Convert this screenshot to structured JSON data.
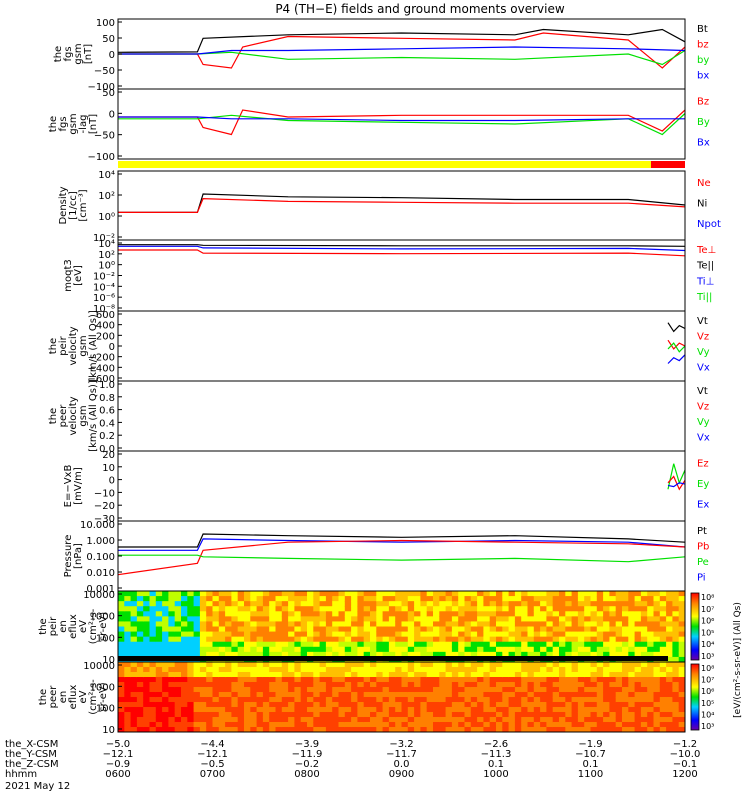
{
  "title": "P4 (TH−E) fields and ground moments overview",
  "colors": {
    "black": "#000000",
    "red": "#ff0000",
    "green": "#00e000",
    "blue": "#0000ff",
    "yellow": "#ffff00",
    "bar_red": "#ff0000"
  },
  "chart_data": [
    {
      "type": "line",
      "ylabel_lines": [
        "the",
        "fgs",
        "gsm",
        "[nT]"
      ],
      "ticks": [
        "100",
        "50",
        "0",
        "−50",
        "−100"
      ],
      "ylim": [
        -100,
        100
      ],
      "legend": [
        {
          "name": "Bt",
          "color": "black"
        },
        {
          "name": "bz",
          "color": "red"
        },
        {
          "name": "by",
          "color": "green"
        },
        {
          "name": "bx",
          "color": "blue"
        }
      ],
      "series": [
        {
          "name": "Bt",
          "color": "black",
          "x": [
            0,
            0.14,
            0.15,
            0.3,
            0.5,
            0.7,
            0.75,
            0.9,
            0.96,
            1
          ],
          "y": [
            5,
            6,
            45,
            55,
            60,
            55,
            70,
            55,
            70,
            35
          ]
        },
        {
          "name": "bz",
          "color": "red",
          "x": [
            0,
            0.14,
            0.15,
            0.2,
            0.22,
            0.3,
            0.5,
            0.7,
            0.75,
            0.9,
            0.96,
            1
          ],
          "y": [
            0,
            0,
            -30,
            -40,
            20,
            50,
            45,
            40,
            60,
            40,
            -40,
            20
          ]
        },
        {
          "name": "by",
          "color": "green",
          "x": [
            0,
            0.14,
            0.2,
            0.3,
            0.5,
            0.7,
            0.9,
            0.96,
            1
          ],
          "y": [
            0,
            0,
            5,
            -15,
            -10,
            -15,
            0,
            -30,
            10
          ]
        },
        {
          "name": "bx",
          "color": "blue",
          "x": [
            0,
            0.14,
            0.2,
            0.3,
            0.5,
            0.7,
            0.9,
            1
          ],
          "y": [
            0,
            0,
            10,
            10,
            15,
            20,
            15,
            10
          ]
        }
      ]
    },
    {
      "type": "line",
      "ylabel_lines": [
        "the",
        "fgs",
        "gsm",
        "-lag",
        "[nT]"
      ],
      "ticks": [
        "50",
        "0",
        "−50",
        "−100"
      ],
      "ylim": [
        -120,
        80
      ],
      "legend": [
        {
          "name": "Bz",
          "color": "red"
        },
        {
          "name": "By",
          "color": "green"
        },
        {
          "name": "Bx",
          "color": "blue"
        }
      ],
      "series": [
        {
          "name": "Bz",
          "color": "red",
          "x": [
            0,
            0.14,
            0.15,
            0.2,
            0.22,
            0.3,
            0.5,
            0.7,
            0.9,
            0.96,
            1
          ],
          "y": [
            0,
            0,
            -30,
            -50,
            20,
            0,
            5,
            5,
            5,
            -40,
            20
          ]
        },
        {
          "name": "By",
          "color": "green",
          "x": [
            0,
            0.14,
            0.2,
            0.3,
            0.5,
            0.7,
            0.9,
            0.96,
            1
          ],
          "y": [
            -5,
            -5,
            5,
            -10,
            -15,
            -20,
            -5,
            -50,
            10
          ]
        },
        {
          "name": "Bx",
          "color": "blue",
          "x": [
            0,
            0.14,
            0.2,
            0.3,
            0.5,
            0.7,
            0.9,
            1
          ],
          "y": [
            0,
            0,
            -5,
            -5,
            -10,
            -10,
            -5,
            -5
          ]
        }
      ]
    },
    {
      "type": "line",
      "ylabel_lines": [
        "Density",
        "[1/cc]",
        "[cm⁻³]"
      ],
      "ticks": [
        "10⁴",
        "10²",
        "10⁰",
        "10⁻²"
      ],
      "ylim": [
        -3,
        4.5
      ],
      "scale": "log",
      "legend": [
        {
          "name": "Ne",
          "color": "red"
        },
        {
          "name": "Ni",
          "color": "black"
        },
        {
          "name": "Npot",
          "color": "blue"
        }
      ],
      "series": [
        {
          "name": "Ni",
          "color": "black",
          "x": [
            0,
            0.14,
            0.15,
            0.3,
            0.5,
            0.7,
            0.9,
            1
          ],
          "y": [
            0,
            0,
            2,
            1.7,
            1.6,
            1.4,
            1.4,
            0.8
          ]
        },
        {
          "name": "Ne",
          "color": "red",
          "x": [
            0,
            0.14,
            0.15,
            0.3,
            0.5,
            0.7,
            0.9,
            1
          ],
          "y": [
            0,
            0,
            1.5,
            1.2,
            1.1,
            1.0,
            1.0,
            0.6
          ]
        }
      ]
    },
    {
      "type": "line",
      "ylabel_lines": [
        "moqt3",
        "[eV]"
      ],
      "ticks": [
        "10⁴",
        "10²",
        "10⁰",
        "10⁻²",
        "10⁻⁴",
        "10⁻⁶",
        "10⁻⁸"
      ],
      "ylim": [
        -9,
        4.5
      ],
      "scale": "log",
      "legend": [
        {
          "name": "Te⊥",
          "color": "red"
        },
        {
          "name": "Te||",
          "color": "black"
        },
        {
          "name": "Ti⊥",
          "color": "blue"
        },
        {
          "name": "Ti||",
          "color": "green"
        }
      ],
      "series": [
        {
          "name": "Te||",
          "color": "black",
          "x": [
            0,
            0.14,
            0.15,
            0.5,
            0.9,
            1
          ],
          "y": [
            3.6,
            3.6,
            3.5,
            3.4,
            3.4,
            3.3
          ]
        },
        {
          "name": "Ti⊥",
          "color": "blue",
          "x": [
            0,
            0.14,
            0.15,
            0.5,
            0.9,
            1
          ],
          "y": [
            3.3,
            3.3,
            3.0,
            2.8,
            2.9,
            2.5
          ]
        },
        {
          "name": "Te⊥",
          "color": "red",
          "x": [
            0,
            0.14,
            0.15,
            0.5,
            0.9,
            1
          ],
          "y": [
            2.6,
            2.6,
            2.0,
            1.9,
            2.0,
            1.5
          ]
        }
      ]
    },
    {
      "type": "line",
      "ylabel_lines": [
        "the",
        "peir",
        "velocity",
        "gsm",
        "[km/s (All Qs)]"
      ],
      "ticks": [
        "600",
        "400",
        "200",
        "0",
        "−200",
        "−400",
        "−600"
      ],
      "ylim": [
        -600,
        600
      ],
      "legend": [
        {
          "name": "Vt",
          "color": "black"
        },
        {
          "name": "Vz",
          "color": "red"
        },
        {
          "name": "Vy",
          "color": "green"
        },
        {
          "name": "Vx",
          "color": "blue"
        }
      ],
      "series": [
        {
          "name": "Vt",
          "color": "black",
          "x": [
            0.97,
            0.98,
            0.99,
            1
          ],
          "y": [
            400,
            250,
            350,
            300
          ]
        },
        {
          "name": "Vz",
          "color": "red",
          "x": [
            0.97,
            0.98,
            0.99,
            1
          ],
          "y": [
            100,
            -50,
            50,
            0
          ]
        },
        {
          "name": "Vy",
          "color": "green",
          "x": [
            0.97,
            0.98,
            0.99,
            1
          ],
          "y": [
            -50,
            50,
            -100,
            0
          ]
        },
        {
          "name": "Vx",
          "color": "blue",
          "x": [
            0.97,
            0.98,
            0.99,
            1
          ],
          "y": [
            -300,
            -200,
            -250,
            -150
          ]
        }
      ]
    },
    {
      "type": "line",
      "ylabel_lines": [
        "the",
        "peer",
        "velocity",
        "gsm",
        "[km/s (All Qs)]"
      ],
      "ticks": [
        "1.0",
        "0.8",
        "0.6",
        "0.4",
        "0.2",
        "0.0"
      ],
      "ylim": [
        0,
        1
      ],
      "legend": [
        {
          "name": "Vt",
          "color": "black"
        },
        {
          "name": "Vz",
          "color": "red"
        },
        {
          "name": "Vy",
          "color": "green"
        },
        {
          "name": "Vx",
          "color": "blue"
        }
      ],
      "series": []
    },
    {
      "type": "line",
      "ylabel_lines": [
        "E=−VxB",
        "[mV/m]"
      ],
      "ticks": [
        "20",
        "10",
        "0",
        "−10",
        "−20",
        "−30"
      ],
      "ylim": [
        -30,
        25
      ],
      "legend": [
        {
          "name": "Ez",
          "color": "red"
        },
        {
          "name": "Ey",
          "color": "green"
        },
        {
          "name": "Ex",
          "color": "blue"
        }
      ],
      "series": [
        {
          "name": "Ey",
          "color": "green",
          "x": [
            0.97,
            0.98,
            0.99,
            1
          ],
          "y": [
            -5,
            15,
            0,
            10
          ]
        },
        {
          "name": "Ez",
          "color": "red",
          "x": [
            0.97,
            0.98,
            0.99,
            1
          ],
          "y": [
            0,
            5,
            -5,
            2
          ]
        },
        {
          "name": "Ex",
          "color": "blue",
          "x": [
            0.97,
            0.98,
            0.99,
            1
          ],
          "y": [
            -2,
            -3,
            0,
            -1
          ]
        }
      ]
    },
    {
      "type": "line",
      "ylabel_lines": [
        "Pressure",
        "[nPa]"
      ],
      "ticks": [
        "10.000",
        "1.000",
        "0.100",
        "0.010",
        "0.001"
      ],
      "ylim": [
        -3,
        1.3
      ],
      "scale": "log",
      "legend": [
        {
          "name": "Pt",
          "color": "black"
        },
        {
          "name": "Pb",
          "color": "red"
        },
        {
          "name": "Pe",
          "color": "green"
        },
        {
          "name": "Pi",
          "color": "blue"
        }
      ],
      "series": [
        {
          "name": "Pt",
          "color": "black",
          "x": [
            0,
            0.14,
            0.15,
            0.3,
            0.5,
            0.7,
            0.9,
            1
          ],
          "y": [
            -0.3,
            -0.3,
            0.5,
            0.4,
            0.3,
            0.4,
            0.2,
            0.0
          ]
        },
        {
          "name": "Pi",
          "color": "blue",
          "x": [
            0,
            0.14,
            0.15,
            0.3,
            0.5,
            0.7,
            0.9,
            1
          ],
          "y": [
            -0.5,
            -0.5,
            0.2,
            0.1,
            0.0,
            0.1,
            0.0,
            -0.3
          ]
        },
        {
          "name": "Pb",
          "color": "red",
          "x": [
            0,
            0.14,
            0.15,
            0.3,
            0.5,
            0.7,
            0.9,
            1
          ],
          "y": [
            -2,
            -1.3,
            -0.5,
            0.0,
            0.1,
            0.0,
            -0.1,
            -0.3
          ]
        },
        {
          "name": "Pe",
          "color": "green",
          "x": [
            0,
            0.14,
            0.15,
            0.3,
            0.5,
            0.7,
            0.9,
            1
          ],
          "y": [
            -0.8,
            -0.8,
            -0.9,
            -1.0,
            -1.1,
            -1.0,
            -1.2,
            -0.9
          ]
        }
      ]
    },
    {
      "type": "heatmap",
      "ylabel_lines": [
        "the",
        "peir",
        "en",
        "eflux",
        "eV",
        "(cm²-s-",
        "sr-eV)"
      ],
      "ticks": [
        "10000",
        "1000",
        "100",
        "10"
      ],
      "colorbar_ticks": [
        "10⁸",
        "10⁷",
        "10⁶",
        "10⁵",
        "10⁴",
        "10³"
      ]
    },
    {
      "type": "heatmap",
      "ylabel_lines": [
        "the",
        "peer",
        "en",
        "eflux",
        "eV",
        "(cm²-s-",
        "sr-eV)"
      ],
      "ticks": [
        "10000",
        "1000",
        "100",
        "10"
      ],
      "colorbar_ticks": [
        "10⁸",
        "10⁷",
        "10⁶",
        "10⁵",
        "10⁴",
        "10³"
      ]
    }
  ],
  "colorbar_label": "[eV/(cm²-s-sr-eV)] (All Qs)",
  "xaxis": {
    "rows": [
      {
        "label": "the_X-CSM",
        "values": [
          "−5.0",
          "−4.4",
          "−3.9",
          "−3.2",
          "−2.6",
          "−1.9",
          "−1.2"
        ]
      },
      {
        "label": "the_Y-CSM",
        "values": [
          "−12.1",
          "−12.1",
          "−11.9",
          "−11.7",
          "−11.3",
          "−10.7",
          "−10.0"
        ]
      },
      {
        "label": "the_Z-CSM",
        "values": [
          "−0.9",
          "−0.5",
          "−0.2",
          "0.0",
          "0.1",
          "0.1",
          "−0.1"
        ]
      },
      {
        "label": "hhmm",
        "values": [
          "0600",
          "0700",
          "0800",
          "0900",
          "1000",
          "1100",
          "1200"
        ]
      }
    ],
    "date": "2021 May 12"
  }
}
